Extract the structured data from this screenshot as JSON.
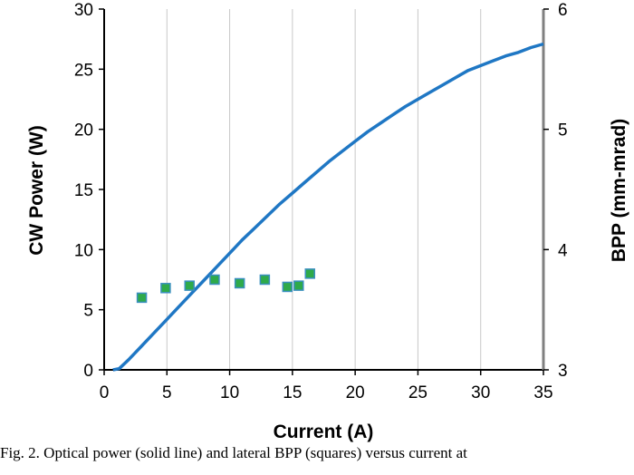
{
  "caption": "Fig. 2.  Optical power (solid line) and lateral BPP (squares) versus current at",
  "colors": {
    "line": "#1f77c4",
    "square_fill": "#2eaa4a",
    "square_edge": "#3a8fbf",
    "grid": "#c8c8c8"
  },
  "chart_data": {
    "type": "line+scatter",
    "xlabel": "Current (A)",
    "ylabel": "CW Power (W)",
    "y2label": "BPP (mm-mrad)",
    "xlim": [
      0,
      35
    ],
    "ylim": [
      0,
      30
    ],
    "y2lim": [
      3,
      6
    ],
    "x_ticks": [
      0,
      5,
      10,
      15,
      20,
      25,
      30,
      35
    ],
    "y_ticks": [
      0,
      5,
      10,
      15,
      20,
      25,
      30
    ],
    "y2_ticks": [
      3,
      4,
      5,
      6
    ],
    "grid": "vertical",
    "series": [
      {
        "kind": "line",
        "axis": "left",
        "points": [
          [
            0.7,
            0
          ],
          [
            1.2,
            0.1
          ],
          [
            2,
            0.9
          ],
          [
            3,
            2.0
          ],
          [
            4,
            3.1
          ],
          [
            5,
            4.2
          ],
          [
            6,
            5.3
          ],
          [
            7,
            6.4
          ],
          [
            8,
            7.5
          ],
          [
            9,
            8.6
          ],
          [
            10,
            9.7
          ],
          [
            11,
            10.8
          ],
          [
            12,
            11.8
          ],
          [
            13,
            12.8
          ],
          [
            14,
            13.8
          ],
          [
            15,
            14.7
          ],
          [
            16,
            15.6
          ],
          [
            17,
            16.5
          ],
          [
            18,
            17.4
          ],
          [
            19,
            18.2
          ],
          [
            20,
            19.0
          ],
          [
            21,
            19.8
          ],
          [
            22,
            20.5
          ],
          [
            23,
            21.2
          ],
          [
            24,
            21.9
          ],
          [
            25,
            22.5
          ],
          [
            26,
            23.1
          ],
          [
            27,
            23.7
          ],
          [
            28,
            24.3
          ],
          [
            29,
            24.9
          ],
          [
            30,
            25.3
          ],
          [
            31,
            25.7
          ],
          [
            32,
            26.1
          ],
          [
            33,
            26.4
          ],
          [
            34,
            26.8
          ],
          [
            35,
            27.1
          ]
        ]
      },
      {
        "kind": "scatter",
        "axis": "right",
        "points": [
          [
            3,
            3.6
          ],
          [
            4.9,
            3.68
          ],
          [
            6.8,
            3.7
          ],
          [
            8.8,
            3.75
          ],
          [
            10.8,
            3.72
          ],
          [
            12.8,
            3.75
          ],
          [
            14.6,
            3.69
          ],
          [
            15.5,
            3.7
          ],
          [
            16.4,
            3.8
          ]
        ]
      }
    ]
  }
}
